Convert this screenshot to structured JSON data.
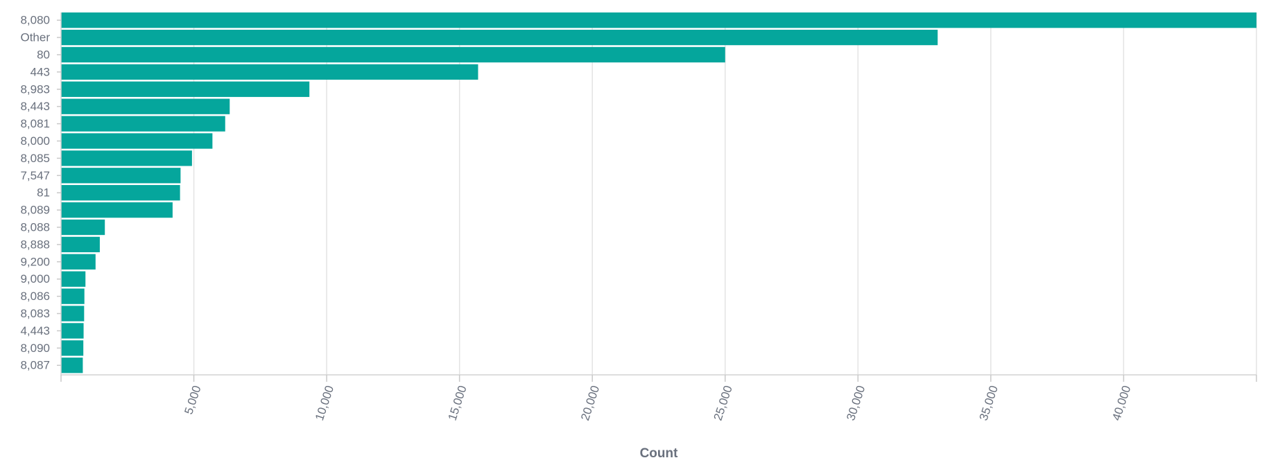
{
  "chart_data": {
    "type": "bar",
    "orientation": "horizontal",
    "categories": [
      "8,080",
      "Other",
      "80",
      "443",
      "8,983",
      "8,443",
      "8,081",
      "8,000",
      "8,085",
      "7,547",
      "81",
      "8,089",
      "8,088",
      "8,888",
      "9,200",
      "9,000",
      "8,086",
      "8,083",
      "4,443",
      "8,090",
      "8,087"
    ],
    "values": [
      45000,
      33000,
      25000,
      15700,
      9350,
      6350,
      6180,
      5700,
      4930,
      4500,
      4480,
      4200,
      1650,
      1460,
      1300,
      920,
      880,
      870,
      850,
      840,
      820
    ],
    "xlabel": "Count",
    "ylabel": "",
    "xlim": [
      0,
      45000
    ],
    "x_ticks": [
      5000,
      10000,
      15000,
      20000,
      25000,
      30000,
      35000,
      40000
    ],
    "x_tick_labels": [
      "5,000",
      "10,000",
      "15,000",
      "20,000",
      "25,000",
      "30,000",
      "35,000",
      "40,000"
    ],
    "grid": "vertical",
    "bar_color": "#05a69c"
  }
}
